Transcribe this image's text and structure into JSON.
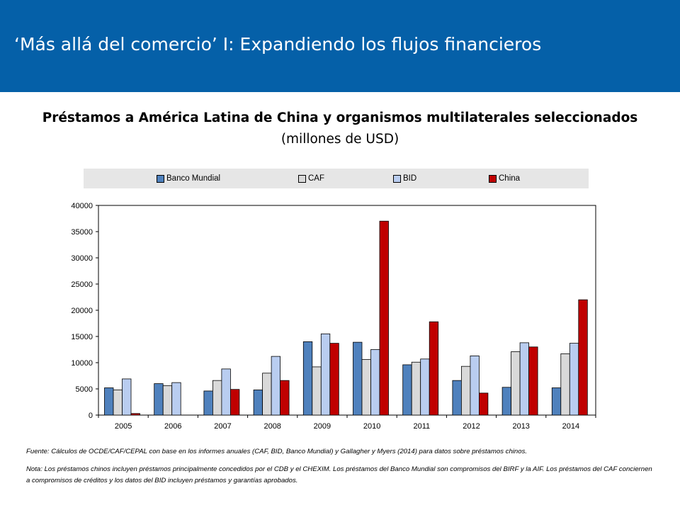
{
  "header": {
    "title": "‘Más allá del comercio’ I: Expandiendo los flujos financieros"
  },
  "chart_title": "Préstamos a América Latina de China y organismos multilaterales seleccionados",
  "chart_subtitle": "(millones de USD)",
  "chart_data": {
    "type": "bar",
    "categories": [
      "2005",
      "2006",
      "2007",
      "2008",
      "2009",
      "2010",
      "2011",
      "2012",
      "2013",
      "2014"
    ],
    "series": [
      {
        "name": "Banco Mundial",
        "color": "#4f81bd",
        "values": [
          5200,
          6000,
          4600,
          4800,
          14000,
          13900,
          9600,
          6600,
          5300,
          5200
        ]
      },
      {
        "name": "CAF",
        "color": "#d9d9d9",
        "values": [
          4800,
          5600,
          6600,
          8000,
          9200,
          10600,
          10100,
          9300,
          12100,
          11700
        ]
      },
      {
        "name": "BID",
        "color": "#b9cdf0",
        "values": [
          6900,
          6200,
          8800,
          11200,
          15500,
          12500,
          10700,
          11300,
          13800,
          13700
        ]
      },
      {
        "name": "China",
        "color": "#c00000",
        "values": [
          300,
          0,
          4900,
          6600,
          13700,
          37000,
          17800,
          4200,
          13000,
          22000
        ]
      }
    ],
    "y_ticks": [
      "0",
      "5000",
      "10000",
      "15000",
      "20000",
      "25000",
      "30000",
      "35000",
      "40000"
    ],
    "ylim": [
      0,
      40000
    ],
    "grid": false,
    "legend_position": "top"
  },
  "notes": {
    "source": "Fuente: Cálculos de OCDE/CAF/CEPAL con base en los informes anuales (CAF, BID, Banco Mundial) y Gallagher y Myers (2014) para datos sobre préstamos chinos.",
    "note": "Nota: Los préstamos chinos incluyen préstamos principalmente concedidos por el CDB y el CHEXIM. Los préstamos del Banco Mundial son compromisos del BIRF y la AIF. Los préstamos del CAF conciernen a compromisos de créditos y los datos del BID incluyen préstamos y garantías aprobados."
  }
}
